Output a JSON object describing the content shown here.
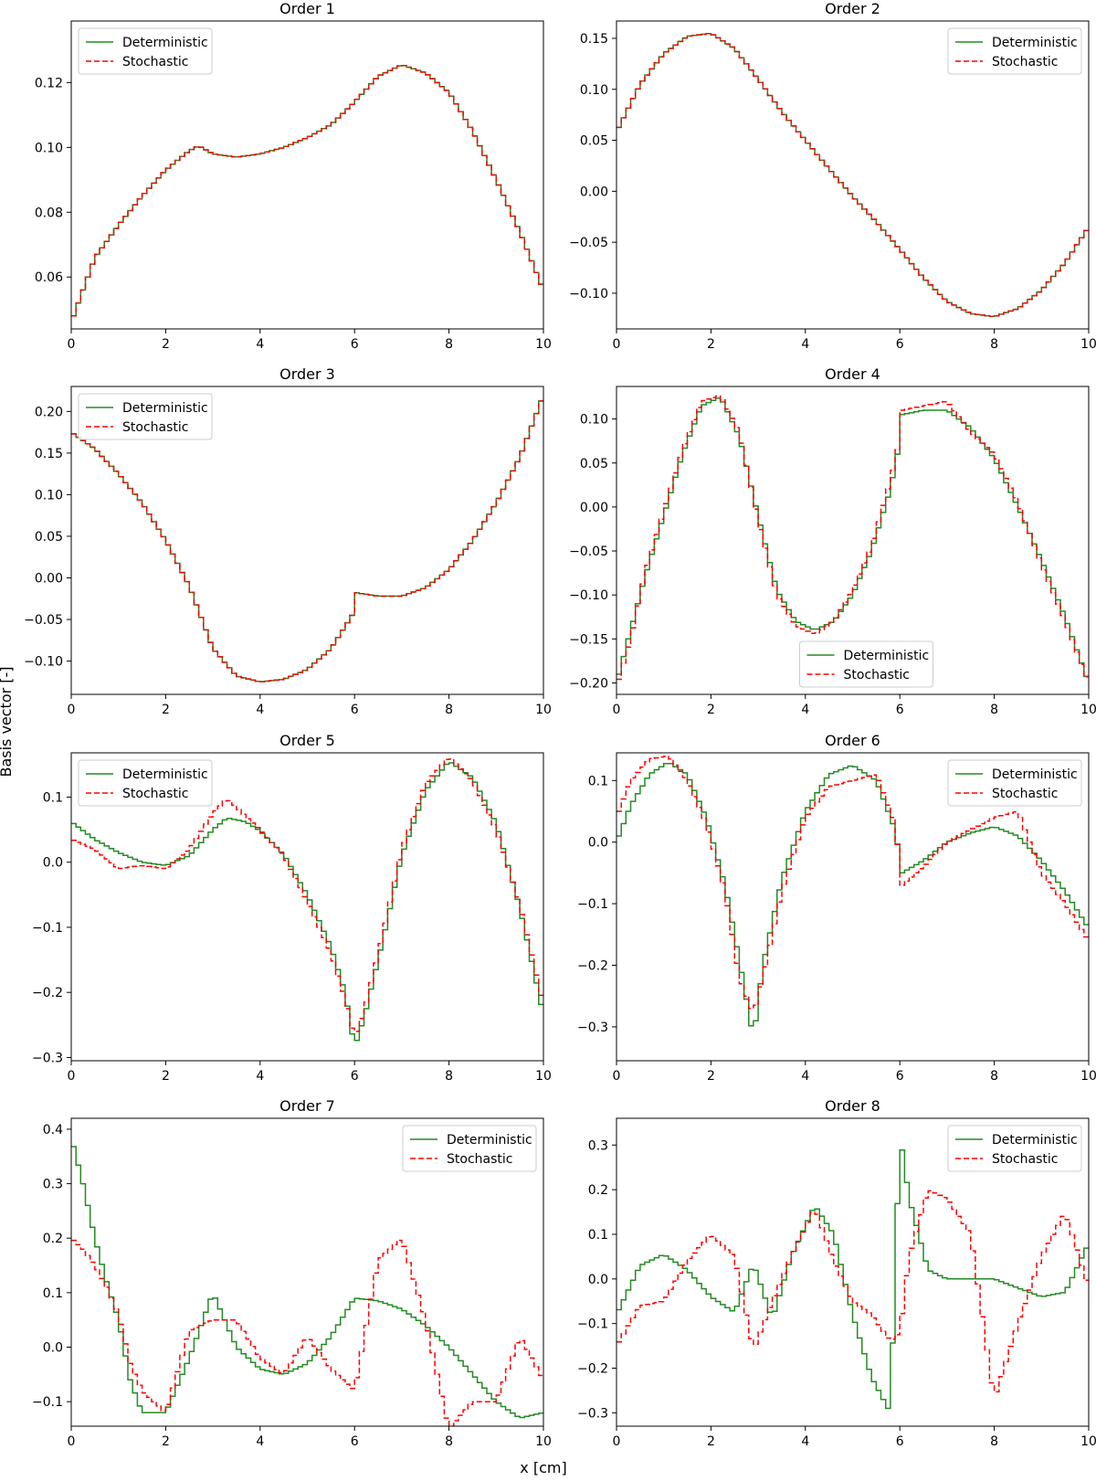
{
  "figure": {
    "xlabel": "x [cm]",
    "ylabel": "Basis vector [-]"
  },
  "series_colors": {
    "Deterministic": "#228b22",
    "Stochastic": "#ff0000"
  },
  "chart_data": [
    {
      "type": "line",
      "title": "Order 1",
      "legend": "upper-left",
      "xlim": [
        0,
        10
      ],
      "ylim": [
        0.044,
        0.139
      ],
      "xticks": [
        0,
        2,
        4,
        6,
        8,
        10
      ],
      "yticks": [
        0.06,
        0.08,
        0.1,
        0.12
      ],
      "ytick_labels": [
        "0.06",
        "0.08",
        "0.10",
        "0.12"
      ],
      "x": [
        0,
        0.5,
        1,
        1.5,
        2,
        2.5,
        2.7,
        3,
        3.5,
        4,
        4.5,
        5,
        5.5,
        6,
        6.5,
        7,
        7.5,
        8,
        8.5,
        9,
        9.5,
        10
      ],
      "series": [
        {
          "name": "Deterministic",
          "style": "solid",
          "values": [
            0.046,
            0.066,
            0.076,
            0.085,
            0.093,
            0.099,
            0.1005,
            0.098,
            0.097,
            0.098,
            0.1,
            0.103,
            0.107,
            0.114,
            0.122,
            0.1255,
            0.123,
            0.117,
            0.105,
            0.09,
            0.074,
            0.056
          ]
        },
        {
          "name": "Stochastic",
          "style": "dashed",
          "values": [
            0.046,
            0.066,
            0.076,
            0.085,
            0.093,
            0.099,
            0.1005,
            0.098,
            0.097,
            0.098,
            0.1,
            0.103,
            0.107,
            0.114,
            0.122,
            0.1255,
            0.123,
            0.117,
            0.105,
            0.09,
            0.074,
            0.056
          ]
        }
      ]
    },
    {
      "type": "line",
      "title": "Order 2",
      "legend": "upper-right",
      "xlim": [
        0,
        10
      ],
      "ylim": [
        -0.135,
        0.167
      ],
      "xticks": [
        0,
        2,
        4,
        6,
        8,
        10
      ],
      "yticks": [
        -0.1,
        -0.05,
        0.0,
        0.05,
        0.1,
        0.15
      ],
      "ytick_labels": [
        "−0.10",
        "−0.05",
        "0.00",
        "0.05",
        "0.10",
        "0.15"
      ],
      "x": [
        0,
        0.5,
        1,
        1.5,
        2,
        2.5,
        3,
        3.5,
        4,
        4.5,
        5,
        5.5,
        6,
        6.5,
        7,
        7.5,
        8,
        8.5,
        9,
        9.5,
        10
      ],
      "series": [
        {
          "name": "Deterministic",
          "style": "solid",
          "values": [
            0.058,
            0.105,
            0.135,
            0.152,
            0.155,
            0.14,
            0.11,
            0.078,
            0.05,
            0.022,
            -0.005,
            -0.03,
            -0.057,
            -0.085,
            -0.108,
            -0.12,
            -0.123,
            -0.115,
            -0.097,
            -0.07,
            -0.035
          ]
        },
        {
          "name": "Stochastic",
          "style": "dashed",
          "values": [
            0.058,
            0.105,
            0.135,
            0.152,
            0.155,
            0.14,
            0.11,
            0.078,
            0.05,
            0.022,
            -0.005,
            -0.03,
            -0.057,
            -0.085,
            -0.108,
            -0.12,
            -0.123,
            -0.115,
            -0.097,
            -0.07,
            -0.035
          ]
        }
      ]
    },
    {
      "type": "line",
      "title": "Order 3",
      "legend": "upper-left",
      "xlim": [
        0,
        10
      ],
      "ylim": [
        -0.14,
        0.23
      ],
      "xticks": [
        0,
        2,
        4,
        6,
        8,
        10
      ],
      "yticks": [
        -0.1,
        -0.05,
        0.0,
        0.05,
        0.1,
        0.15,
        0.2
      ],
      "ytick_labels": [
        "−0.10",
        "−0.05",
        "0.00",
        "0.05",
        "0.10",
        "0.15",
        "0.20"
      ],
      "x": [
        0,
        0.5,
        1,
        1.5,
        2,
        2.5,
        3,
        3.5,
        4,
        4.5,
        5,
        5.5,
        5.95,
        6.05,
        6.5,
        7,
        7.5,
        8,
        8.5,
        9,
        9.5,
        10
      ],
      "series": [
        {
          "name": "Deterministic",
          "style": "solid",
          "values": [
            0.175,
            0.155,
            0.125,
            0.09,
            0.045,
            -0.01,
            -0.085,
            -0.118,
            -0.125,
            -0.122,
            -0.11,
            -0.085,
            -0.045,
            -0.018,
            -0.022,
            -0.022,
            -0.012,
            0.01,
            0.045,
            0.09,
            0.145,
            0.22
          ]
        },
        {
          "name": "Stochastic",
          "style": "dashed",
          "values": [
            0.175,
            0.155,
            0.125,
            0.09,
            0.045,
            -0.01,
            -0.085,
            -0.118,
            -0.125,
            -0.122,
            -0.11,
            -0.085,
            -0.045,
            -0.018,
            -0.022,
            -0.022,
            -0.012,
            0.01,
            0.045,
            0.09,
            0.145,
            0.22
          ]
        }
      ]
    },
    {
      "type": "line",
      "title": "Order 4",
      "legend": "lower-center",
      "xlim": [
        0,
        10
      ],
      "ylim": [
        -0.213,
        0.137
      ],
      "xticks": [
        0,
        2,
        4,
        6,
        8,
        10
      ],
      "yticks": [
        -0.2,
        -0.15,
        -0.1,
        -0.05,
        0.0,
        0.05,
        0.1
      ],
      "ytick_labels": [
        "−0.20",
        "−0.15",
        "−0.10",
        "−0.05",
        "0.00",
        "0.05",
        "0.10"
      ],
      "x": [
        0,
        0.3,
        0.6,
        1,
        1.4,
        1.8,
        2.2,
        2.6,
        3,
        3.4,
        3.8,
        4.2,
        4.6,
        5,
        5.4,
        5.8,
        5.95,
        6.05,
        6.5,
        7,
        7.5,
        8,
        8.5,
        9,
        9.5,
        10
      ],
      "series": [
        {
          "name": "Deterministic",
          "style": "solid",
          "values": [
            -0.2,
            -0.14,
            -0.08,
            -0.01,
            0.06,
            0.115,
            0.125,
            0.08,
            -0.01,
            -0.095,
            -0.13,
            -0.14,
            -0.13,
            -0.1,
            -0.05,
            0.02,
            0.06,
            0.105,
            0.11,
            0.11,
            0.09,
            0.055,
            0.0,
            -0.06,
            -0.125,
            -0.2
          ]
        },
        {
          "name": "Stochastic",
          "style": "dashed",
          "values": [
            -0.205,
            -0.15,
            -0.075,
            -0.005,
            0.065,
            0.12,
            0.127,
            0.085,
            -0.015,
            -0.1,
            -0.135,
            -0.145,
            -0.13,
            -0.095,
            -0.045,
            0.03,
            0.065,
            0.11,
            0.115,
            0.12,
            0.085,
            0.06,
            0.005,
            -0.065,
            -0.13,
            -0.2
          ]
        }
      ]
    },
    {
      "type": "line",
      "title": "Order 5",
      "legend": "upper-left",
      "xlim": [
        0,
        10
      ],
      "ylim": [
        -0.305,
        0.168
      ],
      "xticks": [
        0,
        2,
        4,
        6,
        8,
        10
      ],
      "yticks": [
        -0.3,
        -0.2,
        -0.1,
        0.0,
        0.1
      ],
      "ytick_labels": [
        "−0.3",
        "−0.2",
        "−0.1",
        "0.0",
        "0.1"
      ],
      "x": [
        0,
        0.5,
        1,
        1.5,
        2,
        2.5,
        3,
        3.3,
        3.7,
        4,
        4.5,
        5,
        5.5,
        5.8,
        6,
        6.2,
        6.6,
        7,
        7.5,
        8,
        8.5,
        9,
        9.5,
        10
      ],
      "series": [
        {
          "name": "Deterministic",
          "style": "solid",
          "values": [
            0.062,
            0.035,
            0.015,
            0.0,
            -0.005,
            0.01,
            0.05,
            0.068,
            0.062,
            0.048,
            0.012,
            -0.05,
            -0.13,
            -0.2,
            -0.285,
            -0.24,
            -0.12,
            0.01,
            0.11,
            0.155,
            0.13,
            0.06,
            -0.07,
            -0.235
          ]
        },
        {
          "name": "Stochastic",
          "style": "dashed",
          "values": [
            0.035,
            0.02,
            -0.01,
            -0.005,
            -0.01,
            0.02,
            0.075,
            0.098,
            0.07,
            0.05,
            0.01,
            -0.06,
            -0.14,
            -0.21,
            -0.27,
            -0.23,
            -0.11,
            0.02,
            0.12,
            0.162,
            0.125,
            0.05,
            -0.065,
            -0.22
          ]
        }
      ]
    },
    {
      "type": "line",
      "title": "Order 6",
      "legend": "upper-right",
      "xlim": [
        0,
        10
      ],
      "ylim": [
        -0.355,
        0.145
      ],
      "xticks": [
        0,
        2,
        4,
        6,
        8,
        10
      ],
      "yticks": [
        -0.3,
        -0.2,
        -0.1,
        0.0,
        0.1
      ],
      "ytick_labels": [
        "−0.3",
        "−0.2",
        "−0.1",
        "0.0",
        "0.1"
      ],
      "x": [
        0,
        0.3,
        0.7,
        1.1,
        1.5,
        1.9,
        2.3,
        2.6,
        2.9,
        3.1,
        3.5,
        4,
        4.5,
        5,
        5.5,
        5.9,
        6.05,
        6.5,
        7,
        7.5,
        8,
        8.5,
        9,
        9.5,
        10
      ],
      "series": [
        {
          "name": "Deterministic",
          "style": "solid",
          "values": [
            0.0,
            0.06,
            0.11,
            0.13,
            0.11,
            0.04,
            -0.07,
            -0.19,
            -0.32,
            -0.2,
            -0.06,
            0.05,
            0.11,
            0.125,
            0.1,
            0.02,
            -0.05,
            -0.03,
            0.0,
            0.015,
            0.025,
            0.01,
            -0.03,
            -0.08,
            -0.14
          ]
        },
        {
          "name": "Stochastic",
          "style": "dashed",
          "values": [
            0.04,
            0.1,
            0.135,
            0.14,
            0.1,
            0.03,
            -0.08,
            -0.22,
            -0.28,
            -0.22,
            -0.08,
            0.04,
            0.09,
            0.1,
            0.11,
            0.03,
            -0.07,
            -0.04,
            0.0,
            0.02,
            0.04,
            0.05,
            -0.05,
            -0.1,
            -0.16
          ]
        }
      ]
    },
    {
      "type": "line",
      "title": "Order 7",
      "legend": "upper-right",
      "xlim": [
        0,
        10
      ],
      "ylim": [
        -0.145,
        0.42
      ],
      "xticks": [
        0,
        2,
        4,
        6,
        8,
        10
      ],
      "yticks": [
        -0.1,
        0.0,
        0.1,
        0.2,
        0.3,
        0.4
      ],
      "ytick_labels": [
        "−0.1",
        "0.0",
        "0.1",
        "0.2",
        "0.3",
        "0.4"
      ],
      "x": [
        0,
        0.25,
        0.5,
        0.75,
        1,
        1.25,
        1.5,
        2,
        2.5,
        3,
        3.5,
        4,
        4.5,
        5,
        5.5,
        6,
        6.5,
        7,
        7.5,
        8,
        8.5,
        9,
        9.5,
        10
      ],
      "series": [
        {
          "name": "Deterministic",
          "style": "solid",
          "values": [
            0.385,
            0.3,
            0.2,
            0.12,
            0.05,
            -0.06,
            -0.12,
            -0.12,
            -0.02,
            0.1,
            0.0,
            -0.04,
            -0.05,
            -0.03,
            0.02,
            0.09,
            0.085,
            0.07,
            0.04,
            0.0,
            -0.05,
            -0.1,
            -0.13,
            -0.12
          ]
        },
        {
          "name": "Stochastic",
          "style": "dashed",
          "values": [
            0.2,
            0.18,
            0.15,
            0.11,
            0.06,
            -0.03,
            -0.08,
            -0.12,
            0.03,
            0.05,
            0.05,
            -0.02,
            -0.05,
            0.02,
            -0.04,
            -0.08,
            0.16,
            0.2,
            0.05,
            -0.15,
            -0.1,
            -0.1,
            0.02,
            -0.06
          ]
        }
      ]
    },
    {
      "type": "line",
      "title": "Order 8",
      "legend": "upper-right",
      "xlim": [
        0,
        10
      ],
      "ylim": [
        -0.33,
        0.36
      ],
      "xticks": [
        0,
        2,
        4,
        6,
        8,
        10
      ],
      "yticks": [
        -0.3,
        -0.2,
        -0.1,
        0.0,
        0.1,
        0.2,
        0.3
      ],
      "ytick_labels": [
        "−0.3",
        "−0.2",
        "−0.1",
        "0.0",
        "0.1",
        "0.2",
        "0.3"
      ],
      "x": [
        0,
        0.5,
        1,
        1.5,
        2,
        2.5,
        2.9,
        3.3,
        3.7,
        4.2,
        4.6,
        5,
        5.4,
        5.8,
        6.0,
        6.2,
        6.6,
        7,
        7.5,
        8,
        8.5,
        9,
        9.5,
        10
      ],
      "series": [
        {
          "name": "Deterministic",
          "style": "solid",
          "values": [
            -0.08,
            0.03,
            0.055,
            0.02,
            -0.04,
            -0.075,
            0.035,
            -0.09,
            0.05,
            0.165,
            0.1,
            -0.08,
            -0.22,
            -0.3,
            0.325,
            0.18,
            0.02,
            0.0,
            0.0,
            0.0,
            -0.02,
            -0.04,
            -0.03,
            0.08
          ]
        },
        {
          "name": "Stochastic",
          "style": "dashed",
          "values": [
            -0.15,
            -0.06,
            -0.05,
            0.04,
            0.1,
            0.05,
            -0.16,
            -0.05,
            0.05,
            0.16,
            0.04,
            -0.05,
            -0.08,
            -0.14,
            -0.12,
            0.05,
            0.2,
            0.18,
            0.1,
            -0.27,
            -0.1,
            0.05,
            0.15,
            -0.02
          ]
        }
      ]
    }
  ]
}
